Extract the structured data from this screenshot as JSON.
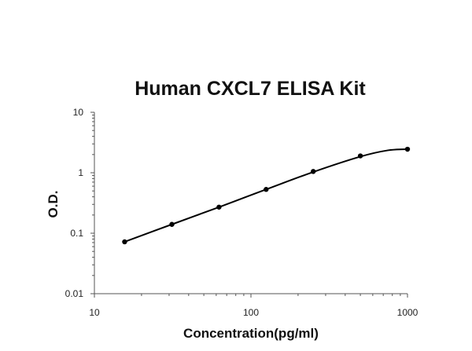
{
  "chart_data": {
    "type": "scatter",
    "title": "Human CXCL7 ELISA Kit",
    "xlabel": "Concentration(pg/ml)",
    "ylabel": "O.D.",
    "xscale": "log",
    "yscale": "log",
    "xlim": [
      10,
      1000
    ],
    "ylim": [
      0.01,
      10
    ],
    "xticks": [
      "10",
      "100",
      "1000"
    ],
    "yticks": [
      "0.01",
      "0.1",
      "1",
      "10"
    ],
    "grid": false,
    "legend": "none",
    "line_color": "#000000",
    "series": [
      {
        "x": [
          15.6,
          31.25,
          62.5,
          125,
          250,
          500,
          1000
        ],
        "y": [
          0.072,
          0.14,
          0.27,
          0.53,
          1.05,
          1.9,
          2.45
        ]
      }
    ],
    "fit_curve": {
      "x": [
        15.6,
        31.25,
        62.5,
        125,
        250,
        500,
        750,
        1000
      ],
      "y": [
        0.072,
        0.14,
        0.27,
        0.53,
        1.03,
        1.85,
        2.35,
        2.45
      ]
    }
  }
}
